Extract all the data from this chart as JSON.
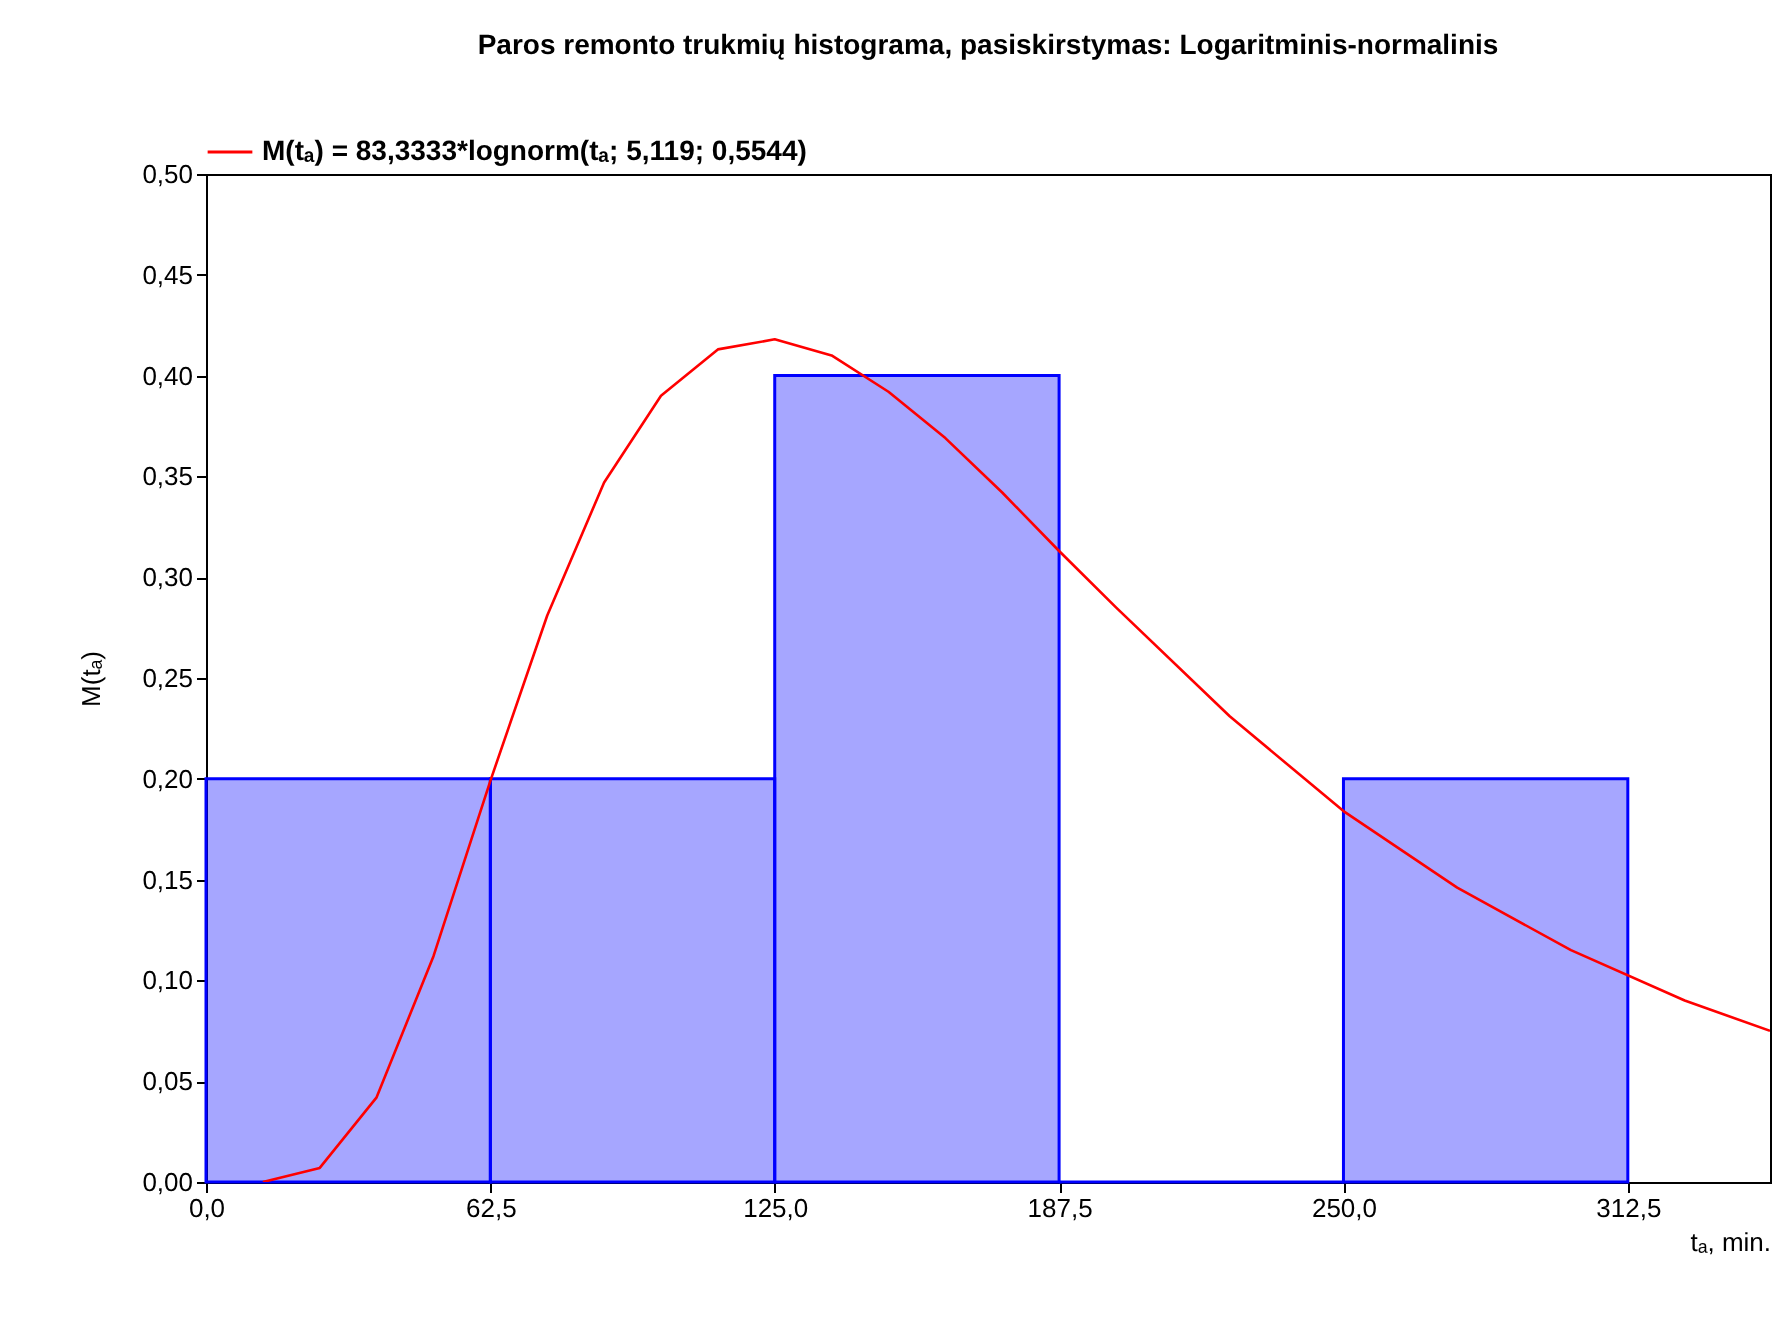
{
  "chart_data": {
    "type": "histogram",
    "title": "Paros remonto trukmių histograma, pasiskirstymas: Logaritminis-normalinis",
    "xlabel": "tₐ, min.",
    "ylabel": "M(tₐ)",
    "bins": [
      0,
      62.5,
      125,
      187.5,
      250,
      312.5
    ],
    "values": [
      0.2,
      0.2,
      0.4,
      0,
      0.2
    ],
    "color": "#0000ff",
    "series": [
      {
        "type": "line",
        "name": "M(tₐ) = 83,3333*lognorm(tₐ; 5,119; 0,5544)",
        "color": "#ff0000",
        "x": [
          12.5,
          25,
          37.5,
          50,
          62.5,
          75,
          87.5,
          100,
          112.5,
          125,
          137.5,
          150,
          162.5,
          175,
          187.5,
          200,
          225,
          250,
          275,
          300,
          325,
          343.75
        ],
        "values": [
          0.0,
          0.007,
          0.042,
          0.112,
          0.199,
          0.281,
          0.347,
          0.39,
          0.413,
          0.418,
          0.41,
          0.392,
          0.369,
          0.342,
          0.313,
          0.285,
          0.231,
          0.184,
          0.146,
          0.115,
          0.09,
          0.075
        ]
      }
    ],
    "xlim": [
      0,
      343.75
    ],
    "xticks": [
      {
        "value": 0,
        "label": "0,0"
      },
      {
        "value": 62.5,
        "label": "62,5"
      },
      {
        "value": 125,
        "label": "125,0"
      },
      {
        "value": 187.5,
        "label": "187,5"
      },
      {
        "value": 250,
        "label": "250,0"
      },
      {
        "value": 312.5,
        "label": "312,5"
      }
    ],
    "ylim": [
      0,
      0.5
    ],
    "yticks": [
      {
        "value": 0,
        "label": "0,00"
      },
      {
        "value": 0.05,
        "label": "0,05"
      },
      {
        "value": 0.1,
        "label": "0,10"
      },
      {
        "value": 0.15,
        "label": "0,15"
      },
      {
        "value": 0.2,
        "label": "0,20"
      },
      {
        "value": 0.25,
        "label": "0,25"
      },
      {
        "value": 0.3,
        "label": "0,30"
      },
      {
        "value": 0.35,
        "label": "0,35"
      },
      {
        "value": 0.4,
        "label": "0,40"
      },
      {
        "value": 0.45,
        "label": "0,45"
      },
      {
        "value": 0.5,
        "label": "0,50"
      }
    ],
    "grid": false,
    "legend": "top"
  }
}
